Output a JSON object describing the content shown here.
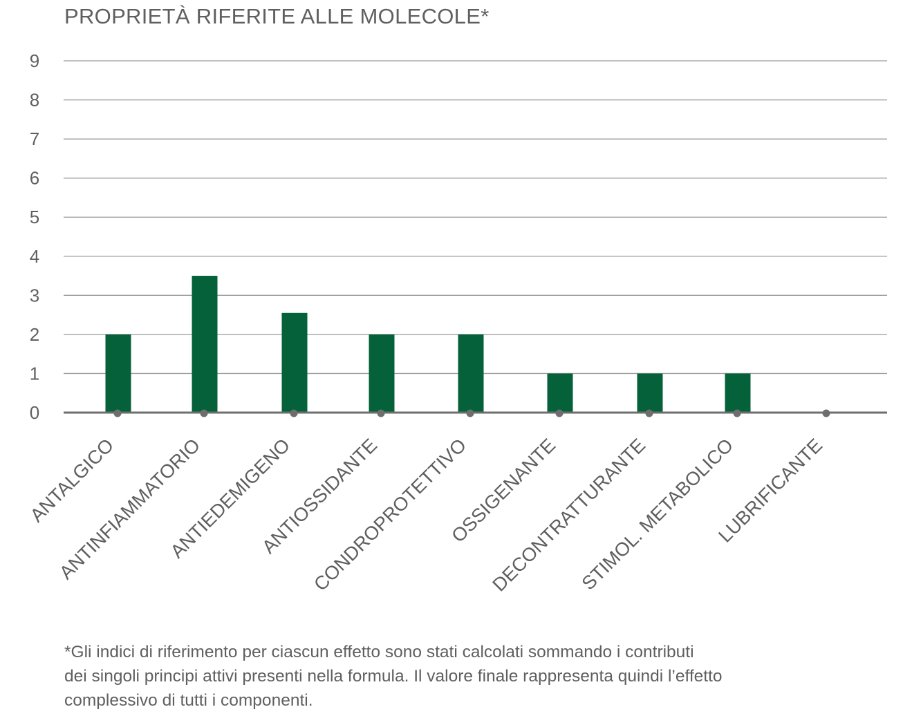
{
  "chart_data": {
    "type": "bar",
    "title": "PROPRIETÀ RIFERITE ALLE MOLECOLE*",
    "categories": [
      "ANTALGICO",
      "ANTINFIAMMATORIO",
      "ANTIEDEMIGENO",
      "ANTIOSSIDANTE",
      "CONDROPROTETTIVO",
      "OSSIGENANTE",
      "DECONTRATTURANTE",
      "STIMOL. METABOLICO",
      "LUBRIFICANTE"
    ],
    "values": [
      2,
      3.5,
      2.55,
      2,
      2,
      1,
      1,
      1,
      0
    ],
    "ylim": [
      0,
      9
    ],
    "yticks": [
      "0",
      "1",
      "2",
      "3",
      "4",
      "5",
      "6",
      "7",
      "8",
      "9"
    ],
    "grid": true,
    "bar_color": "#05613a",
    "axis_color": "#6e6e6e",
    "gridline_color": "#9a9a9a"
  },
  "footnote": {
    "lines": [
      "*Gli indici di riferimento per ciascun effetto sono stati calcolati sommando i contributi",
      "dei singoli principi attivi presenti nella formula. Il valore finale rappresenta quindi l’effetto",
      "complessivo di tutti i componenti."
    ]
  }
}
